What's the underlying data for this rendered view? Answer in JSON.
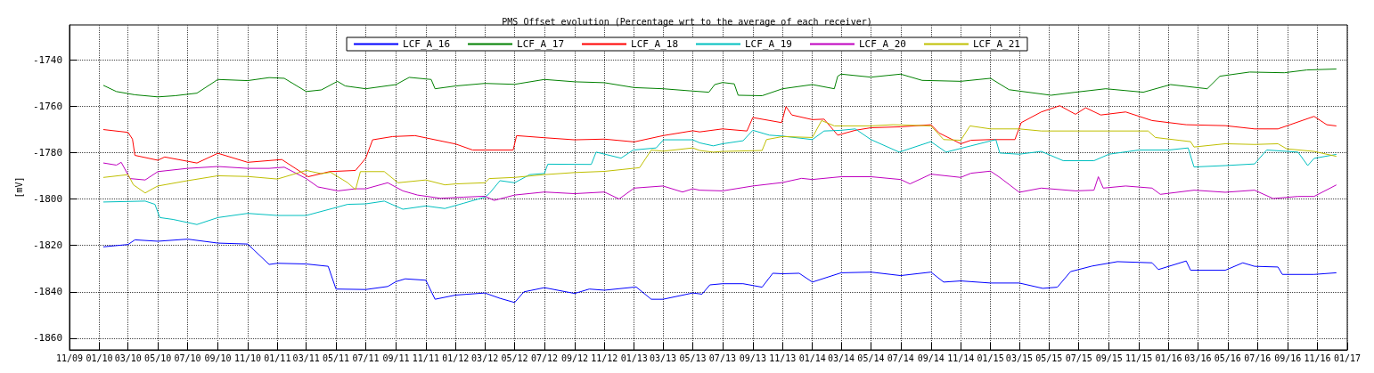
{
  "chart_data": {
    "type": "line",
    "title": "PMS Offset evolution (Percentage wrt to the average of each receiver)",
    "ylabel": "[mV]",
    "xlim": [
      "2009-11",
      "2017-01"
    ],
    "ylim": [
      -1865,
      -1725
    ],
    "yticks": [
      -1860,
      -1840,
      -1820,
      -1800,
      -1780,
      -1760,
      -1740
    ],
    "xticks": [
      {
        "value": "2009-11",
        "label": "11/09"
      },
      {
        "value": "2010-01",
        "label": "01/10"
      },
      {
        "value": "2010-03",
        "label": "03/10"
      },
      {
        "value": "2010-05",
        "label": "05/10"
      },
      {
        "value": "2010-07",
        "label": "07/10"
      },
      {
        "value": "2010-09",
        "label": "09/10"
      },
      {
        "value": "2010-11",
        "label": "11/10"
      },
      {
        "value": "2011-01",
        "label": "01/11"
      },
      {
        "value": "2011-03",
        "label": "03/11"
      },
      {
        "value": "2011-05",
        "label": "05/11"
      },
      {
        "value": "2011-07",
        "label": "07/11"
      },
      {
        "value": "2011-09",
        "label": "09/11"
      },
      {
        "value": "2011-11",
        "label": "11/11"
      },
      {
        "value": "2012-01",
        "label": "01/12"
      },
      {
        "value": "2012-03",
        "label": "03/12"
      },
      {
        "value": "2012-05",
        "label": "05/12"
      },
      {
        "value": "2012-07",
        "label": "07/12"
      },
      {
        "value": "2012-09",
        "label": "09/12"
      },
      {
        "value": "2012-11",
        "label": "11/12"
      },
      {
        "value": "2013-01",
        "label": "01/13"
      },
      {
        "value": "2013-03",
        "label": "03/13"
      },
      {
        "value": "2013-05",
        "label": "05/13"
      },
      {
        "value": "2013-07",
        "label": "07/13"
      },
      {
        "value": "2013-09",
        "label": "09/13"
      },
      {
        "value": "2013-11",
        "label": "11/13"
      },
      {
        "value": "2014-01",
        "label": "01/14"
      },
      {
        "value": "2014-03",
        "label": "03/14"
      },
      {
        "value": "2014-05",
        "label": "05/14"
      },
      {
        "value": "2014-07",
        "label": "07/14"
      },
      {
        "value": "2014-09",
        "label": "09/14"
      },
      {
        "value": "2014-11",
        "label": "11/14"
      },
      {
        "value": "2015-01",
        "label": "01/15"
      },
      {
        "value": "2015-03",
        "label": "03/15"
      },
      {
        "value": "2015-05",
        "label": "05/15"
      },
      {
        "value": "2015-07",
        "label": "07/15"
      },
      {
        "value": "2015-09",
        "label": "09/15"
      },
      {
        "value": "2015-11",
        "label": "11/15"
      },
      {
        "value": "2016-01",
        "label": "01/16"
      },
      {
        "value": "2016-03",
        "label": "03/16"
      },
      {
        "value": "2016-05",
        "label": "05/16"
      },
      {
        "value": "2016-07",
        "label": "07/16"
      },
      {
        "value": "2016-09",
        "label": "09/16"
      },
      {
        "value": "2016-11",
        "label": "11/16"
      },
      {
        "value": "2017-01",
        "label": "01/17"
      }
    ],
    "grid": true,
    "legend": "top",
    "marker": "none",
    "line_style": "solid",
    "series": [
      {
        "name": "LCF_A_16",
        "color": "#0000ff",
        "x": [
          "2010-01-10",
          "2010-03-01",
          "2010-03-15",
          "2010-05-01",
          "2010-07-01",
          "2010-09-01",
          "2010-11-01",
          "2010-12-15",
          "2011-01-01",
          "2011-03-01",
          "2011-04-15",
          "2011-05-01",
          "2011-07-01",
          "2011-08-15",
          "2011-09-01",
          "2011-09-20",
          "2011-11-01",
          "2011-11-20",
          "2012-01-01",
          "2012-03-01",
          "2012-04-01",
          "2012-05-01",
          "2012-05-20",
          "2012-07-01",
          "2012-09-01",
          "2012-10-01",
          "2012-11-01",
          "2013-01-05",
          "2013-02-05",
          "2013-03-01",
          "2013-05-01",
          "2013-05-20",
          "2013-06-05",
          "2013-07-01",
          "2013-08-12",
          "2013-09-20",
          "2013-10-12",
          "2013-11-01",
          "2013-12-05",
          "2014-01-01",
          "2014-03-01",
          "2014-05-01",
          "2014-07-01",
          "2014-09-01",
          "2014-09-27",
          "2014-11-01",
          "2015-01-01",
          "2015-03-01",
          "2015-04-18",
          "2015-05-18",
          "2015-06-14",
          "2015-07-28",
          "2015-09-18",
          "2015-11-28",
          "2015-12-11",
          "2016-02-06",
          "2016-02-15",
          "2016-04-26",
          "2016-06-01",
          "2016-06-25",
          "2016-08-12",
          "2016-08-21",
          "2016-10-25",
          "2016-12-09"
        ],
        "values": [
          -1820.6,
          -1819.6,
          -1817.6,
          -1818.2,
          -1817.3,
          -1819,
          -1819.4,
          -1828.2,
          -1827.7,
          -1828,
          -1829,
          -1838.8,
          -1839,
          -1837.7,
          -1835.6,
          -1834.4,
          -1835,
          -1843.2,
          -1841.4,
          -1840.5,
          -1842.8,
          -1844.6,
          -1840,
          -1838.2,
          -1840.7,
          -1838.8,
          -1839.3,
          -1837.9,
          -1843.2,
          -1843.2,
          -1840.5,
          -1841,
          -1837,
          -1836.5,
          -1836.5,
          -1838,
          -1832,
          -1832.2,
          -1832,
          -1835.8,
          -1831.8,
          -1831.5,
          -1833,
          -1831.5,
          -1835.8,
          -1835.3,
          -1836.2,
          -1836.2,
          -1838.5,
          -1838,
          -1831.3,
          -1828.9,
          -1827,
          -1827.5,
          -1830.4,
          -1826.7,
          -1830.7,
          -1830.7,
          -1827.5,
          -1829,
          -1829.3,
          -1832.5,
          -1832.5,
          -1831.8
        ]
      },
      {
        "name": "LCF_A_17",
        "color": "#008000",
        "x": [
          "2010-01-10",
          "2010-02-05",
          "2010-03-15",
          "2010-05-01",
          "2010-06-05",
          "2010-07-20",
          "2010-09-01",
          "2010-11-01",
          "2010-12-15",
          "2011-01-15",
          "2011-03-01",
          "2011-04-01",
          "2011-05-04",
          "2011-05-20",
          "2011-07-01",
          "2011-09-01",
          "2011-09-28",
          "2011-11-12",
          "2011-11-20",
          "2012-01-01",
          "2012-03-01",
          "2012-05-01",
          "2012-07-01",
          "2012-09-01",
          "2012-11-01",
          "2013-01-01",
          "2013-03-01",
          "2013-04-25",
          "2013-06-03",
          "2013-06-15",
          "2013-07-01",
          "2013-07-25",
          "2013-08-02",
          "2013-09-20",
          "2013-11-01",
          "2014-01-01",
          "2014-02-15",
          "2014-02-22",
          "2014-03-01",
          "2014-05-01",
          "2014-07-01",
          "2014-08-14",
          "2014-11-01",
          "2015-01-01",
          "2015-02-08",
          "2015-03-01",
          "2015-05-05",
          "2015-06-24",
          "2015-08-25",
          "2015-11-10",
          "2016-01-05",
          "2016-03-20",
          "2016-04-15",
          "2016-06-15",
          "2016-08-25",
          "2016-10-10",
          "2016-12-09"
        ],
        "values": [
          -1751.1,
          -1753.7,
          -1755.1,
          -1756,
          -1755.5,
          -1754.4,
          -1748.5,
          -1749,
          -1747.7,
          -1748,
          -1753.7,
          -1753,
          -1749.3,
          -1751.3,
          -1752.5,
          -1750.7,
          -1747.6,
          -1748.5,
          -1752.5,
          -1751.3,
          -1750.2,
          -1750.6,
          -1748.5,
          -1749.5,
          -1749.9,
          -1752,
          -1752.5,
          -1753.4,
          -1754,
          -1750.7,
          -1749.8,
          -1750.4,
          -1755.3,
          -1755.5,
          -1752.5,
          -1750.7,
          -1752.5,
          -1747.1,
          -1746.2,
          -1747.5,
          -1746.2,
          -1748.9,
          -1749.3,
          -1748,
          -1752.9,
          -1753.5,
          -1755.3,
          -1754,
          -1752.5,
          -1754,
          -1750.7,
          -1752.5,
          -1747.1,
          -1745.3,
          -1745.6,
          -1744.4,
          -1744
        ]
      },
      {
        "name": "LCF_A_18",
        "color": "#ff0000",
        "x": [
          "2010-01-10",
          "2010-03-01",
          "2010-03-10",
          "2010-03-15",
          "2010-05-01",
          "2010-05-15",
          "2010-07-20",
          "2010-09-01",
          "2010-11-01",
          "2011-01-10",
          "2011-03-05",
          "2011-04-18",
          "2011-06-10",
          "2011-07-01",
          "2011-07-15",
          "2011-08-25",
          "2011-10-10",
          "2012-01-01",
          "2012-02-05",
          "2012-04-28",
          "2012-05-05",
          "2012-07-01",
          "2012-09-01",
          "2012-11-01",
          "2013-01-01",
          "2013-03-01",
          "2013-05-01",
          "2013-05-15",
          "2013-07-01",
          "2013-08-20",
          "2013-09-01",
          "2013-10-30",
          "2013-11-08",
          "2013-11-20",
          "2014-01-01",
          "2014-01-25",
          "2014-02-22",
          "2014-03-30",
          "2014-05-01",
          "2014-07-01",
          "2014-09-01",
          "2014-09-18",
          "2014-11-01",
          "2014-11-22",
          "2015-01-01",
          "2015-02-20",
          "2015-03-05",
          "2015-04-15",
          "2015-05-23",
          "2015-06-24",
          "2015-07-15",
          "2015-08-15",
          "2015-10-05",
          "2015-11-28",
          "2016-02-06",
          "2016-04-26",
          "2016-06-25",
          "2016-08-12",
          "2016-10-25",
          "2016-11-20",
          "2016-12-09"
        ],
        "values": [
          -1770.1,
          -1771.3,
          -1774.2,
          -1781.2,
          -1783.3,
          -1781.9,
          -1784.5,
          -1780.3,
          -1784.2,
          -1783,
          -1790.4,
          -1788.2,
          -1787.7,
          -1782.4,
          -1774.5,
          -1773.1,
          -1772.7,
          -1776.3,
          -1778.9,
          -1778.9,
          -1772.7,
          -1773.6,
          -1774.5,
          -1774.2,
          -1775.4,
          -1772.7,
          -1770.6,
          -1771.1,
          -1769.8,
          -1770.7,
          -1764.9,
          -1767.1,
          -1760.2,
          -1763.8,
          -1765.8,
          -1765.6,
          -1772.5,
          -1770.4,
          -1769.3,
          -1768.9,
          -1768,
          -1771.6,
          -1776.2,
          -1774.7,
          -1774.4,
          -1774.4,
          -1767.1,
          -1762.5,
          -1759.8,
          -1763.5,
          -1760.7,
          -1763.8,
          -1762.5,
          -1766.2,
          -1768,
          -1768.4,
          -1769.8,
          -1769.8,
          -1764.4,
          -1768,
          -1768.5
        ]
      },
      {
        "name": "LCF_A_19",
        "color": "#00bfbf",
        "x": [
          "2010-01-10",
          "2010-04-05",
          "2010-04-25",
          "2010-05-05",
          "2010-06-01",
          "2010-07-20",
          "2010-09-01",
          "2010-11-01",
          "2011-01-01",
          "2011-03-01",
          "2011-04-18",
          "2011-05-25",
          "2011-07-01",
          "2011-08-08",
          "2011-09-15",
          "2011-11-01",
          "2011-12-10",
          "2012-01-18",
          "2012-03-01",
          "2012-03-10",
          "2012-04-01",
          "2012-05-01",
          "2012-06-01",
          "2012-07-01",
          "2012-07-08",
          "2012-10-05",
          "2012-10-15",
          "2012-12-05",
          "2012-12-30",
          "2013-02-15",
          "2013-03-02",
          "2013-05-01",
          "2013-05-15",
          "2013-06-12",
          "2013-07-01",
          "2013-08-12",
          "2013-09-01",
          "2013-10-05",
          "2013-11-01",
          "2014-01-01",
          "2014-01-25",
          "2014-03-01",
          "2014-03-30",
          "2014-05-01",
          "2014-06-28",
          "2014-09-01",
          "2014-10-02",
          "2014-11-22",
          "2015-01-12",
          "2015-01-20",
          "2015-03-01",
          "2015-04-15",
          "2015-05-30",
          "2015-08-01",
          "2015-09-01",
          "2015-11-01",
          "2016-01-01",
          "2016-02-10",
          "2016-02-22",
          "2016-04-26",
          "2016-06-25",
          "2016-07-20",
          "2016-09-22",
          "2016-10-12",
          "2016-10-25",
          "2016-12-09"
        ],
        "values": [
          -1801.3,
          -1800.9,
          -1802.3,
          -1808,
          -1808.8,
          -1811,
          -1808,
          -1806.2,
          -1807.1,
          -1807.1,
          -1804.4,
          -1802.3,
          -1802.1,
          -1800.9,
          -1804.4,
          -1803,
          -1804.1,
          -1801.8,
          -1799.2,
          -1797.7,
          -1792.1,
          -1793,
          -1789.5,
          -1789,
          -1785,
          -1785.1,
          -1779.8,
          -1782.4,
          -1778.9,
          -1778,
          -1774.5,
          -1774.5,
          -1775.8,
          -1777.1,
          -1776.2,
          -1774.9,
          -1770.4,
          -1772.5,
          -1772.9,
          -1774.4,
          -1770.7,
          -1770.4,
          -1769.8,
          -1774.4,
          -1779.8,
          -1775.3,
          -1779.8,
          -1777.1,
          -1774.4,
          -1780.2,
          -1780.7,
          -1779.5,
          -1783.5,
          -1783.5,
          -1780.7,
          -1778.9,
          -1778.9,
          -1778,
          -1786.2,
          -1785.6,
          -1784.9,
          -1778.9,
          -1779.8,
          -1785.6,
          -1782.5,
          -1780.8
        ]
      },
      {
        "name": "LCF_A_20",
        "color": "#bf00bf",
        "x": [
          "2010-01-10",
          "2010-02-05",
          "2010-02-15",
          "2010-03-05",
          "2010-04-05",
          "2010-05-01",
          "2010-07-01",
          "2010-09-01",
          "2010-11-01",
          "2010-12-15",
          "2011-01-15",
          "2011-03-01",
          "2011-03-25",
          "2011-05-05",
          "2011-06-10",
          "2011-07-01",
          "2011-08-15",
          "2011-09-15",
          "2011-10-15",
          "2011-12-01",
          "2012-01-18",
          "2012-03-01",
          "2012-03-20",
          "2012-05-01",
          "2012-07-01",
          "2012-09-01",
          "2012-11-01",
          "2012-12-01",
          "2013-01-01",
          "2013-03-01",
          "2013-04-10",
          "2013-05-01",
          "2013-05-15",
          "2013-07-01",
          "2013-09-01",
          "2013-11-01",
          "2013-12-10",
          "2014-01-01",
          "2014-03-01",
          "2014-05-01",
          "2014-07-01",
          "2014-07-20",
          "2014-09-01",
          "2014-11-01",
          "2014-11-22",
          "2015-01-01",
          "2015-01-20",
          "2015-03-01",
          "2015-04-15",
          "2015-06-24",
          "2015-08-01",
          "2015-08-10",
          "2015-08-20",
          "2015-10-05",
          "2015-11-28",
          "2015-12-15",
          "2016-02-22",
          "2016-04-26",
          "2016-06-25",
          "2016-08-02",
          "2016-09-22",
          "2016-10-25",
          "2016-12-09"
        ],
        "values": [
          -1784.5,
          -1785.4,
          -1784.2,
          -1791.2,
          -1791.8,
          -1788.2,
          -1786.8,
          -1786,
          -1786.8,
          -1786.8,
          -1786.3,
          -1791.2,
          -1794.8,
          -1796.5,
          -1795.6,
          -1795.6,
          -1793,
          -1796.5,
          -1798.3,
          -1799.7,
          -1799.2,
          -1798.8,
          -1800.6,
          -1798.3,
          -1797,
          -1797.7,
          -1797,
          -1800,
          -1795.3,
          -1794.4,
          -1797,
          -1795.6,
          -1796.2,
          -1796.5,
          -1794.4,
          -1792.9,
          -1791.1,
          -1791.6,
          -1790.4,
          -1790.4,
          -1791.6,
          -1793.5,
          -1789.3,
          -1790.7,
          -1788.9,
          -1788,
          -1790.7,
          -1797.1,
          -1795.3,
          -1796.5,
          -1796.2,
          -1790.4,
          -1795.3,
          -1794.4,
          -1795.3,
          -1798,
          -1796.2,
          -1797.1,
          -1796.2,
          -1799.8,
          -1798.9,
          -1798.9,
          -1794
        ]
      },
      {
        "name": "LCF_A_21",
        "color": "#bfbf00",
        "x": [
          "2010-01-10",
          "2010-03-01",
          "2010-03-12",
          "2010-04-05",
          "2010-04-20",
          "2010-05-01",
          "2010-07-01",
          "2010-09-01",
          "2010-11-01",
          "2011-01-01",
          "2011-03-01",
          "2011-04-01",
          "2011-04-20",
          "2011-05-25",
          "2011-06-10",
          "2011-06-20",
          "2011-08-08",
          "2011-09-05",
          "2011-11-01",
          "2011-12-10",
          "2012-01-01",
          "2012-03-01",
          "2012-03-10",
          "2012-05-01",
          "2012-07-01",
          "2012-09-01",
          "2012-11-01",
          "2013-01-12",
          "2013-02-05",
          "2013-03-01",
          "2013-05-01",
          "2013-05-15",
          "2013-06-12",
          "2013-07-01",
          "2013-09-20",
          "2013-09-29",
          "2013-11-01",
          "2014-01-01",
          "2014-01-20",
          "2014-02-15",
          "2014-05-01",
          "2014-06-15",
          "2014-09-01",
          "2014-09-27",
          "2014-11-01",
          "2014-11-20",
          "2015-01-01",
          "2015-03-01",
          "2015-04-15",
          "2015-06-24",
          "2015-11-20",
          "2015-12-05",
          "2016-02-15",
          "2016-02-22",
          "2016-04-26",
          "2016-06-25",
          "2016-08-12",
          "2016-08-30",
          "2016-10-25",
          "2016-12-09"
        ],
        "values": [
          -1790.7,
          -1789.5,
          -1793.9,
          -1797.4,
          -1795.6,
          -1794.4,
          -1792.1,
          -1790,
          -1790.3,
          -1791.4,
          -1787.7,
          -1789.1,
          -1788.5,
          -1793,
          -1796,
          -1788.2,
          -1788.2,
          -1793,
          -1791.8,
          -1793.9,
          -1793.5,
          -1793,
          -1791.2,
          -1790.7,
          -1789.5,
          -1788.6,
          -1788.1,
          -1786.5,
          -1778.9,
          -1779.4,
          -1778,
          -1779.1,
          -1779.8,
          -1779.5,
          -1779.1,
          -1774.4,
          -1773.1,
          -1773.5,
          -1766.2,
          -1768.5,
          -1768.5,
          -1768,
          -1768.5,
          -1774.4,
          -1774.7,
          -1768.5,
          -1769.8,
          -1769.8,
          -1770.7,
          -1770.7,
          -1770.7,
          -1773.5,
          -1775.3,
          -1777.6,
          -1776.2,
          -1776.5,
          -1776.2,
          -1778.4,
          -1779.5,
          -1781.6
        ]
      }
    ]
  }
}
